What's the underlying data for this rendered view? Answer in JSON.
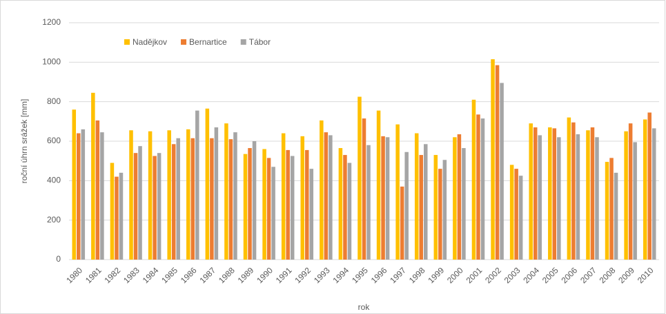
{
  "chart_data": {
    "type": "bar",
    "ylabel": "roční úhrn srážek [mm]",
    "xlabel": "rok",
    "categories": [
      "1980",
      "1981",
      "1982",
      "1983",
      "1984",
      "1985",
      "1986",
      "1987",
      "1988",
      "1989",
      "1990",
      "1991",
      "1992",
      "1993",
      "1994",
      "1995",
      "1996",
      "1997",
      "1998",
      "1999",
      "2000",
      "2001",
      "2002",
      "2003",
      "2004",
      "2005",
      "2006",
      "2007",
      "2008",
      "2009",
      "2010"
    ],
    "series": [
      {
        "name": "Nadějkov",
        "color": "#ffc000",
        "values": [
          760,
          845,
          490,
          655,
          650,
          655,
          660,
          765,
          690,
          535,
          560,
          640,
          625,
          705,
          565,
          825,
          755,
          685,
          640,
          530,
          620,
          810,
          1015,
          480,
          690,
          670,
          720,
          655,
          495,
          650,
          710
        ]
      },
      {
        "name": "Bernartice",
        "color": "#ed7d31",
        "values": [
          640,
          705,
          420,
          540,
          525,
          585,
          615,
          615,
          610,
          565,
          515,
          555,
          555,
          645,
          530,
          715,
          625,
          370,
          530,
          460,
          635,
          735,
          985,
          460,
          670,
          665,
          695,
          670,
          515,
          690,
          745
        ]
      },
      {
        "name": "Tábor",
        "color": "#a5a5a5",
        "values": [
          660,
          645,
          440,
          575,
          540,
          615,
          755,
          670,
          645,
          600,
          470,
          525,
          460,
          630,
          490,
          580,
          620,
          545,
          585,
          505,
          565,
          715,
          895,
          425,
          630,
          620,
          635,
          620,
          440,
          595,
          665
        ]
      }
    ],
    "ylim": [
      0,
      1200
    ],
    "yticks": [
      0,
      200,
      400,
      600,
      800,
      1000,
      1200
    ],
    "grid": true
  }
}
